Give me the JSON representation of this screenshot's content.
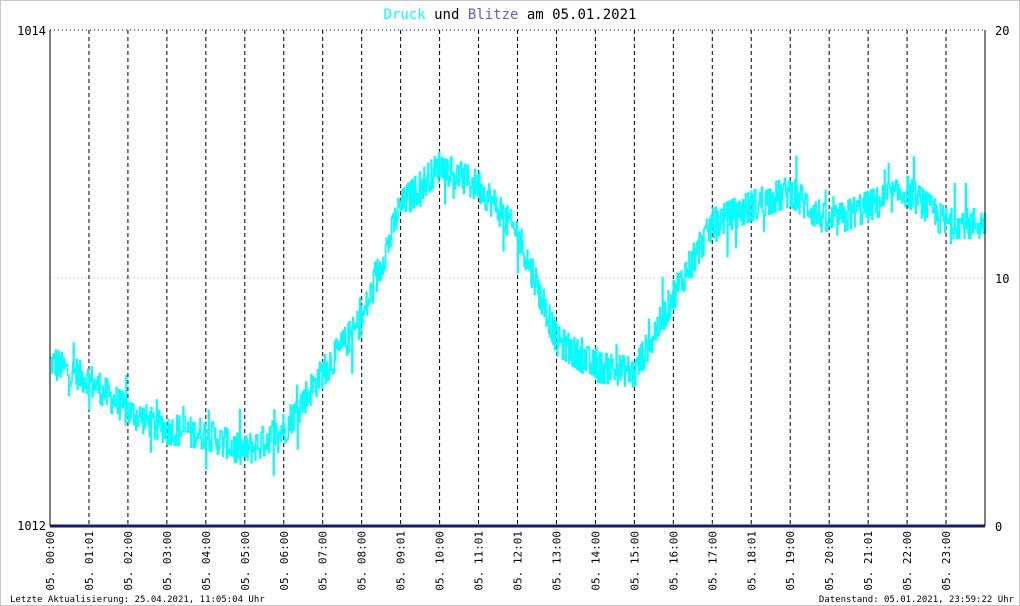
{
  "title": {
    "part1": "Druck",
    "part2": " und ",
    "part3": "Blitze",
    "part4": " am 05.01.2021",
    "color_druck": "#00ffff",
    "color_blitze": "#6a5acd",
    "color_text": "#000000"
  },
  "footer": {
    "left": "Letzte Aktualisierung: 25.04.2021, 11:05:04 Uhr",
    "right": "Datenstand: 05.01.2021, 23:59:22 Uhr"
  },
  "chart_data": {
    "type": "line",
    "title": "Druck und Blitze am 05.01.2021",
    "xlim": [
      "05.01.2021 00:00",
      "05.01.2021 24:00"
    ],
    "x_tick_labels": [
      "05. 00:00",
      "05. 01:01",
      "05. 02:00",
      "05. 03:00",
      "05. 04:00",
      "05. 05:00",
      "05. 06:00",
      "05. 07:00",
      "05. 08:00",
      "05. 09:01",
      "05. 10:00",
      "05. 11:01",
      "05. 12:01",
      "05. 13:00",
      "05. 14:00",
      "05. 15:00",
      "05. 16:00",
      "05. 17:00",
      "05. 18:01",
      "05. 19:00",
      "05. 20:00",
      "05. 21:01",
      "05. 22:00",
      "05. 23:00"
    ],
    "y_left": {
      "ylim": [
        1012,
        1014
      ],
      "tick_labels": [
        "1012",
        "1014"
      ]
    },
    "y_right": {
      "ylim": [
        0,
        20
      ],
      "tick_labels": [
        "0",
        "10",
        "20"
      ]
    },
    "grid": true,
    "colors": {
      "druck": "#00ffff",
      "blitze": "#191970",
      "grid_major": "#000000",
      "grid_minor": "#c0c0c0"
    },
    "series": [
      {
        "name": "Druck",
        "axis": "left",
        "hours": [
          0,
          1,
          2,
          3,
          4,
          5,
          6,
          7,
          8,
          9,
          10,
          11,
          12,
          13,
          14,
          15,
          16,
          17,
          18,
          19,
          20,
          21,
          22,
          23,
          24
        ],
        "values": [
          1012.66,
          1012.59,
          1012.46,
          1012.39,
          1012.37,
          1012.3,
          1012.39,
          1012.62,
          1012.83,
          1013.29,
          1013.45,
          1013.37,
          1013.18,
          1012.75,
          1012.64,
          1012.62,
          1012.93,
          1013.22,
          1013.29,
          1013.35,
          1013.22,
          1013.29,
          1013.35,
          1013.22,
          1013.22
        ]
      },
      {
        "name": "Blitze",
        "axis": "right",
        "hours": [
          0,
          24
        ],
        "values": [
          0,
          0
        ]
      }
    ]
  }
}
